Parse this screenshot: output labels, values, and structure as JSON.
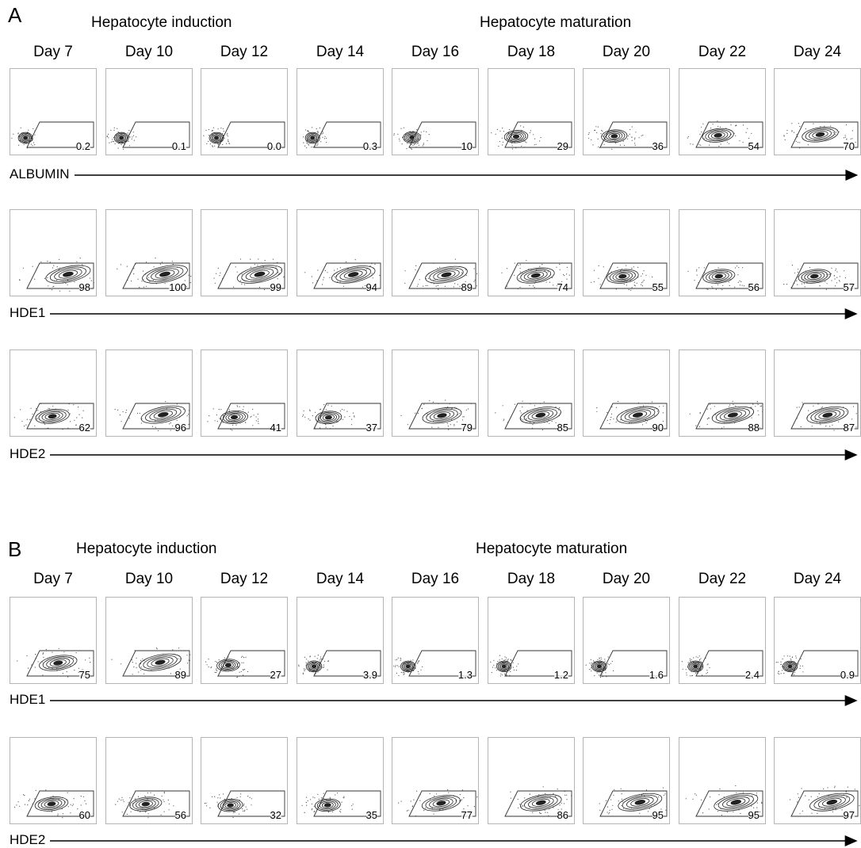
{
  "days": [
    "Day 7",
    "Day 10",
    "Day 12",
    "Day 14",
    "Day 16",
    "Day 18",
    "Day 20",
    "Day 22",
    "Day 24"
  ],
  "panel_a": {
    "letter": "A",
    "induction_title": "Hepatocyte induction",
    "maturation_title": "Hepatocyte maturation",
    "rows": [
      {
        "marker": "ALBUMIN",
        "values": [
          "0.2",
          "0.1",
          "0.0",
          "0.3",
          "10",
          "29",
          "36",
          "54",
          "70"
        ]
      },
      {
        "marker": "HDE1",
        "values": [
          "98",
          "100",
          "99",
          "94",
          "89",
          "74",
          "55",
          "56",
          "57"
        ]
      },
      {
        "marker": "HDE2",
        "values": [
          "62",
          "96",
          "41",
          "37",
          "79",
          "85",
          "90",
          "88",
          "87"
        ]
      }
    ]
  },
  "panel_b": {
    "letter": "B",
    "induction_title": "Hepatocyte induction",
    "maturation_title": "Hepatocyte maturation",
    "rows": [
      {
        "marker": "HDE1",
        "values": [
          "75",
          "89",
          "27",
          "3.9",
          "1.3",
          "1.2",
          "1.6",
          "2.4",
          "0.9"
        ]
      },
      {
        "marker": "HDE2",
        "values": [
          "60",
          "56",
          "32",
          "35",
          "77",
          "86",
          "95",
          "95",
          "97"
        ]
      }
    ]
  }
}
